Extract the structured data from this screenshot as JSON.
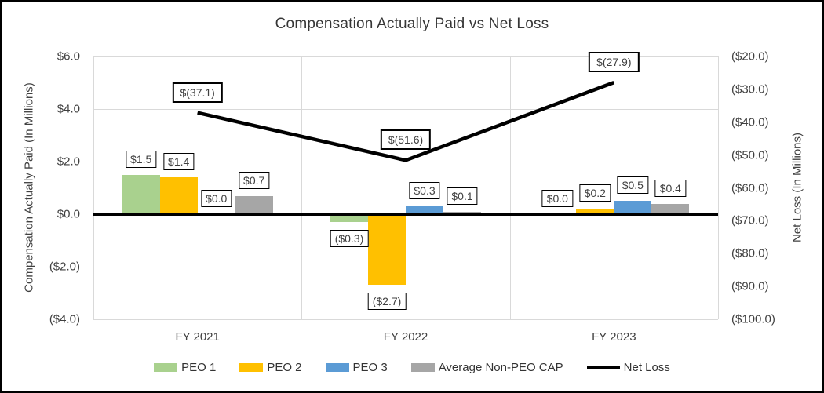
{
  "title": "Compensation Actually Paid vs Net Loss",
  "left_axis": {
    "title": "Compensation Actually Paid (In Millions)",
    "ticks": [
      "$6.0",
      "$4.0",
      "$2.0",
      "$0.0",
      "($2.0)",
      "($4.0)"
    ],
    "zero_tick_index": 3
  },
  "right_axis": {
    "title": "Net Loss (In Millions)",
    "ticks": [
      "($20.0)",
      "($30.0)",
      "($40.0)",
      "($50.0)",
      "($60.0)",
      "($70.0)",
      "($80.0)",
      "($90.0)",
      "($100.0)"
    ]
  },
  "chart_data": {
    "type": "bar",
    "subtype": "clustered bars with overlaid line, dual y-axes",
    "title": "Compensation Actually Paid vs Net Loss",
    "categories": [
      "FY 2021",
      "FY 2022",
      "FY 2023"
    ],
    "left_ylim": [
      -4.0,
      6.0
    ],
    "right_ylim": [
      -100.0,
      -20.0
    ],
    "grid": true,
    "legend_position": "bottom",
    "series": [
      {
        "name": "PEO 1",
        "type": "bar",
        "axis": "left",
        "color": "#a9d18e",
        "values": [
          1.5,
          -0.3,
          0.0
        ],
        "labels": [
          "$1.5",
          "($0.3)",
          "$0.0"
        ]
      },
      {
        "name": "PEO 2",
        "type": "bar",
        "axis": "left",
        "color": "#ffc000",
        "values": [
          1.4,
          -2.7,
          0.2
        ],
        "labels": [
          "$1.4",
          "($2.7)",
          "$0.2"
        ]
      },
      {
        "name": "PEO 3",
        "type": "bar",
        "axis": "left",
        "color": "#5b9bd5",
        "values": [
          0.0,
          0.3,
          0.5
        ],
        "labels": [
          "$0.0",
          "$0.3",
          "$0.5"
        ]
      },
      {
        "name": "Average Non-PEO CAP",
        "type": "bar",
        "axis": "left",
        "color": "#a6a6a6",
        "values": [
          0.7,
          0.1,
          0.4
        ],
        "labels": [
          "$0.7",
          "$0.1",
          "$0.4"
        ]
      },
      {
        "name": "Net Loss",
        "type": "line",
        "axis": "right",
        "color": "#000000",
        "values": [
          -37.1,
          -51.6,
          -27.9
        ],
        "labels": [
          "$(37.1)",
          "$(51.6)",
          "$(27.9)"
        ]
      }
    ]
  }
}
